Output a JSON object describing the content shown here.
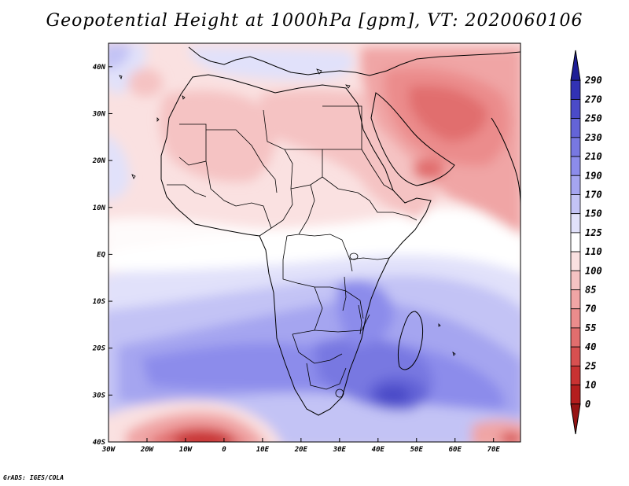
{
  "title": "Geopotential Height at 1000hPa [gpm], VT: 2020060106",
  "credit": "GrADS: IGES/COLA",
  "map": {
    "variable": "Geopotential Height at 1000hPa",
    "units": "gpm",
    "valid_time": "2020060106",
    "lon_range": [
      -30,
      77
    ],
    "lat_range": [
      -40,
      45
    ],
    "x_ticks": [
      {
        "value": -30,
        "label": "30W"
      },
      {
        "value": -20,
        "label": "20W"
      },
      {
        "value": -10,
        "label": "10W"
      },
      {
        "value": 0,
        "label": "0"
      },
      {
        "value": 10,
        "label": "10E"
      },
      {
        "value": 20,
        "label": "20E"
      },
      {
        "value": 30,
        "label": "30E"
      },
      {
        "value": 40,
        "label": "40E"
      },
      {
        "value": 50,
        "label": "50E"
      },
      {
        "value": 60,
        "label": "60E"
      },
      {
        "value": 70,
        "label": "70E"
      }
    ],
    "y_ticks": [
      {
        "value": 40,
        "label": "40N"
      },
      {
        "value": 30,
        "label": "30N"
      },
      {
        "value": 20,
        "label": "20N"
      },
      {
        "value": 10,
        "label": "10N"
      },
      {
        "value": 0,
        "label": "EQ"
      },
      {
        "value": -10,
        "label": "10S"
      },
      {
        "value": -20,
        "label": "20S"
      },
      {
        "value": -30,
        "label": "30S"
      },
      {
        "value": -40,
        "label": "40S"
      }
    ],
    "colorbar": {
      "levels": [
        "290",
        "270",
        "250",
        "230",
        "210",
        "190",
        "170",
        "150",
        "125",
        "110",
        "100",
        "85",
        "70",
        "55",
        "40",
        "25",
        "10",
        "0"
      ],
      "colors": [
        "#1e1e96",
        "#3232b4",
        "#4b4bc8",
        "#6464d7",
        "#7878e1",
        "#8c8ceb",
        "#a5a5f0",
        "#c3c3f5",
        "#e1e1fa",
        "#ffffff",
        "#fae1e1",
        "#f5c3c3",
        "#f0a5a5",
        "#eb8c8c",
        "#e16e6e",
        "#d75050",
        "#c83232",
        "#b41e1e",
        "#961414"
      ]
    }
  }
}
